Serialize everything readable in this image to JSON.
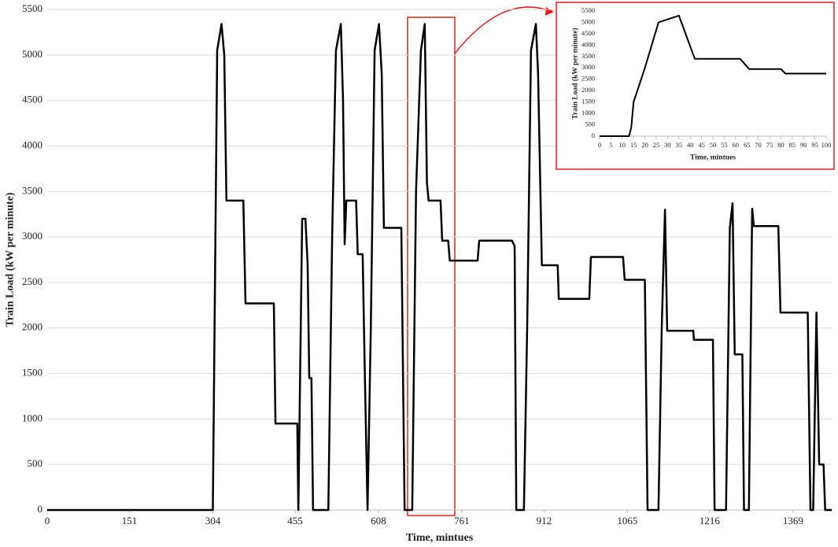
{
  "chart_data": [
    {
      "type": "line",
      "xlabel": "Time, mintues",
      "ylabel": "Train Load (kW per minute)",
      "x": [
        0,
        304,
        312,
        320,
        325,
        329,
        360,
        364,
        416,
        419,
        459,
        461,
        468,
        474,
        478,
        481,
        485,
        488,
        516,
        523,
        530,
        539,
        543,
        546,
        549,
        567,
        570,
        579,
        583,
        588,
        594,
        601,
        609,
        614,
        618,
        650,
        656,
        670,
        677,
        686,
        693,
        697,
        700,
        722,
        725,
        736,
        739,
        790,
        793,
        853,
        858,
        861,
        875,
        881,
        888,
        897,
        901,
        908,
        937,
        939,
        995,
        998,
        1057,
        1060,
        1097,
        1102,
        1122,
        1128,
        1134,
        1138,
        1186,
        1187,
        1222,
        1225,
        1246,
        1253,
        1258,
        1262,
        1276,
        1279,
        1288,
        1294,
        1297,
        1342,
        1346,
        1396,
        1401,
        1406,
        1412,
        1417,
        1425,
        1428,
        1440
      ],
      "series": [
        {
          "color": "#000000",
          "values": [
            0,
            0,
            5050,
            5340,
            5000,
            3400,
            3400,
            2270,
            2270,
            950,
            950,
            0,
            3200,
            3200,
            2700,
            1450,
            1450,
            0,
            0,
            3000,
            5050,
            5340,
            4500,
            2920,
            3400,
            3400,
            2810,
            2810,
            1500,
            0,
            2000,
            5050,
            5340,
            4800,
            3100,
            3100,
            0,
            0,
            3500,
            5050,
            5340,
            3600,
            3400,
            3400,
            2960,
            2960,
            2740,
            2740,
            2960,
            2960,
            2900,
            0,
            0,
            2000,
            5050,
            5340,
            4800,
            2690,
            2690,
            2320,
            2320,
            2780,
            2780,
            2530,
            2530,
            0,
            0,
            2000,
            3300,
            1970,
            1970,
            1870,
            1870,
            0,
            0,
            3100,
            3370,
            1710,
            1710,
            0,
            0,
            3310,
            3120,
            3120,
            2170,
            2170,
            0,
            0,
            2170,
            500,
            500,
            0,
            0
          ]
        }
      ],
      "xlim": [
        0,
        1440
      ],
      "xticks": [
        0,
        151,
        304,
        455,
        608,
        761,
        912,
        1065,
        1216,
        1369
      ],
      "ylim": [
        0,
        5500
      ],
      "yticks": [
        0,
        500,
        1000,
        1500,
        2000,
        2500,
        3000,
        3500,
        4000,
        4500,
        5000,
        5500
      ],
      "grid": true
    },
    {
      "type": "line",
      "xlabel": "Time, mintues",
      "ylabel": "Train Load (kW per minute)",
      "x": [
        0,
        13,
        14,
        15,
        20,
        26,
        35,
        42,
        62,
        66,
        80,
        82,
        100
      ],
      "series": [
        {
          "color": "#000000",
          "values": [
            0,
            0,
            400,
            1500,
            3000,
            5000,
            5300,
            3400,
            3400,
            2950,
            2950,
            2750,
            2750
          ]
        }
      ],
      "xlim": [
        0,
        100
      ],
      "xticks": [
        0,
        5,
        10,
        15,
        20,
        25,
        30,
        35,
        40,
        45,
        50,
        55,
        60,
        65,
        70,
        75,
        80,
        85,
        90,
        95,
        100
      ],
      "ylim": [
        0,
        5500
      ],
      "yticks": [
        0,
        500,
        1000,
        1500,
        2000,
        2500,
        3000,
        3500,
        4000,
        4500,
        5000,
        5500
      ],
      "grid": false
    }
  ]
}
